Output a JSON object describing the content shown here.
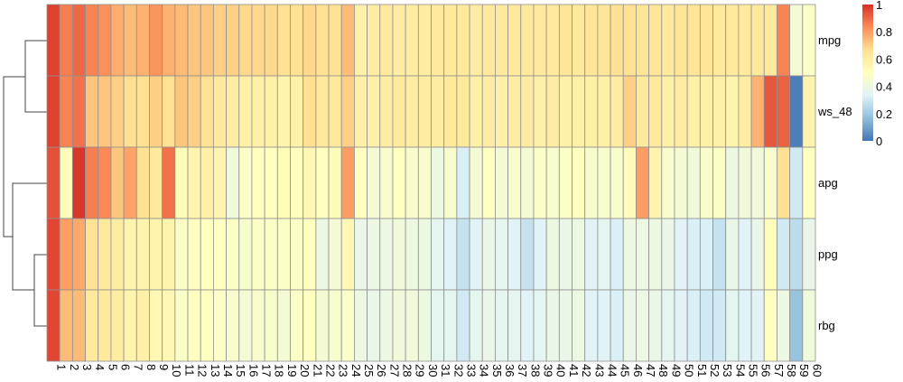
{
  "chart_data": {
    "type": "heatmap",
    "columns": [
      "1",
      "2",
      "3",
      "4",
      "5",
      "6",
      "7",
      "8",
      "9",
      "10",
      "11",
      "12",
      "13",
      "14",
      "15",
      "16",
      "17",
      "18",
      "19",
      "20",
      "21",
      "22",
      "23",
      "24",
      "25",
      "26",
      "27",
      "28",
      "29",
      "30",
      "31",
      "32",
      "33",
      "34",
      "35",
      "36",
      "37",
      "38",
      "39",
      "40",
      "41",
      "42",
      "43",
      "44",
      "45",
      "46",
      "47",
      "48",
      "49",
      "50",
      "51",
      "52",
      "53",
      "54",
      "55",
      "56",
      "57",
      "58",
      "59",
      "60"
    ],
    "rows": [
      "mpg",
      "ws_48",
      "apg",
      "ppg",
      "rbg"
    ],
    "values": [
      [
        0.97,
        0.86,
        0.9,
        0.85,
        0.83,
        0.77,
        0.74,
        0.76,
        0.82,
        0.76,
        0.74,
        0.72,
        0.72,
        0.7,
        0.7,
        0.68,
        0.68,
        0.68,
        0.66,
        0.66,
        0.68,
        0.66,
        0.66,
        0.74,
        0.58,
        0.6,
        0.62,
        0.6,
        0.6,
        0.6,
        0.62,
        0.62,
        0.62,
        0.6,
        0.62,
        0.62,
        0.62,
        0.62,
        0.62,
        0.62,
        0.64,
        0.62,
        0.64,
        0.64,
        0.66,
        0.66,
        0.64,
        0.64,
        0.62,
        0.64,
        0.64,
        0.64,
        0.62,
        0.62,
        0.62,
        0.62,
        0.62,
        0.85,
        0.44,
        0.48
      ],
      [
        0.97,
        0.85,
        0.88,
        0.72,
        0.72,
        0.7,
        0.66,
        0.66,
        0.7,
        0.66,
        0.72,
        0.7,
        0.66,
        0.62,
        0.6,
        0.58,
        0.58,
        0.58,
        0.56,
        0.58,
        0.66,
        0.62,
        0.62,
        0.7,
        0.58,
        0.58,
        0.6,
        0.62,
        0.6,
        0.6,
        0.6,
        0.62,
        0.62,
        0.58,
        0.6,
        0.58,
        0.6,
        0.6,
        0.58,
        0.6,
        0.58,
        0.58,
        0.58,
        0.58,
        0.6,
        0.7,
        0.62,
        0.62,
        0.58,
        0.6,
        0.58,
        0.58,
        0.58,
        0.56,
        0.6,
        0.76,
        0.93,
        0.91,
        0.02,
        0.56
      ],
      [
        0.94,
        0.52,
        0.99,
        0.86,
        0.84,
        0.72,
        0.79,
        0.66,
        0.62,
        0.88,
        0.52,
        0.56,
        0.58,
        0.56,
        0.42,
        0.48,
        0.5,
        0.5,
        0.52,
        0.5,
        0.54,
        0.5,
        0.52,
        0.8,
        0.5,
        0.44,
        0.46,
        0.5,
        0.46,
        0.46,
        0.4,
        0.46,
        0.32,
        0.44,
        0.5,
        0.44,
        0.46,
        0.44,
        0.48,
        0.46,
        0.48,
        0.5,
        0.46,
        0.46,
        0.46,
        0.52,
        0.8,
        0.56,
        0.46,
        0.44,
        0.42,
        0.46,
        0.48,
        0.4,
        0.42,
        0.42,
        0.46,
        0.66,
        0.3,
        0.5
      ],
      [
        0.96,
        0.8,
        0.78,
        0.66,
        0.62,
        0.6,
        0.56,
        0.56,
        0.56,
        0.56,
        0.48,
        0.5,
        0.5,
        0.5,
        0.48,
        0.46,
        0.48,
        0.48,
        0.48,
        0.48,
        0.5,
        0.4,
        0.44,
        0.54,
        0.38,
        0.4,
        0.4,
        0.42,
        0.4,
        0.4,
        0.36,
        0.34,
        0.28,
        0.34,
        0.38,
        0.36,
        0.34,
        0.28,
        0.34,
        0.4,
        0.38,
        0.4,
        0.34,
        0.36,
        0.32,
        0.4,
        0.4,
        0.4,
        0.38,
        0.34,
        0.32,
        0.32,
        0.28,
        0.38,
        0.34,
        0.38,
        0.52,
        0.3,
        0.26,
        0.38
      ],
      [
        0.96,
        0.74,
        0.74,
        0.62,
        0.62,
        0.6,
        0.56,
        0.58,
        0.54,
        0.54,
        0.48,
        0.5,
        0.5,
        0.48,
        0.46,
        0.44,
        0.46,
        0.46,
        0.44,
        0.48,
        0.5,
        0.44,
        0.46,
        0.48,
        0.4,
        0.38,
        0.4,
        0.42,
        0.42,
        0.4,
        0.36,
        0.36,
        0.3,
        0.36,
        0.38,
        0.36,
        0.36,
        0.34,
        0.36,
        0.38,
        0.38,
        0.4,
        0.34,
        0.34,
        0.32,
        0.38,
        0.4,
        0.38,
        0.36,
        0.34,
        0.32,
        0.3,
        0.3,
        0.36,
        0.34,
        0.34,
        0.5,
        0.4,
        0.18,
        0.42
      ]
    ],
    "legend": {
      "ticks": [
        "0",
        "0.2",
        "0.4",
        "0.6",
        "0.8",
        "1"
      ],
      "range": [
        0,
        1
      ],
      "placement": "right"
    },
    "colors": {
      "scale": [
        "#4575b4",
        "#91bfdb",
        "#e0f3f8",
        "#ffffbf",
        "#fee090",
        "#fc8d59",
        "#d73027"
      ],
      "cell_border": "#8f8f8f"
    },
    "row_dendrogram": true
  }
}
